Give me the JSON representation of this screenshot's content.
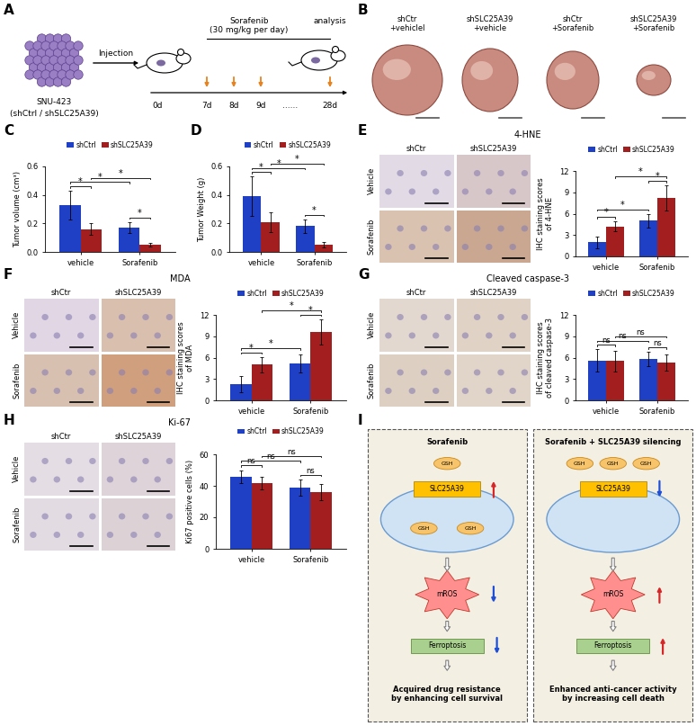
{
  "panel_labels": [
    "A",
    "B",
    "C",
    "D",
    "E",
    "F",
    "G",
    "H",
    "I"
  ],
  "schematic": {
    "cells": "SNU-423",
    "cells_note": "(shCtrl / shSLC25A39)",
    "injection": "Injection",
    "treatment": "Sorafenib",
    "dose": "(30 mg/kg per day)",
    "endpoint": "analysis",
    "days": [
      "0d",
      "7d",
      "8d",
      "9d",
      "......",
      "28d"
    ]
  },
  "tumor_photos": {
    "labels": [
      "shCtr\n+vehiclel",
      "shSLC25A39\n+vehicle",
      "shCtr\n+Sorafenib",
      "shSLC25A39\n+Sorafenib"
    ]
  },
  "chart_data": [
    {
      "type": "bar",
      "ylabel": "Tumor volume (cm³)",
      "categories": [
        "vehicle",
        "Sorafenib"
      ],
      "series": [
        {
          "name": "shCtrl",
          "color": "#1f3fc4",
          "values": [
            0.33,
            0.17
          ],
          "errors": [
            0.1,
            0.04
          ]
        },
        {
          "name": "shSLC25A39",
          "color": "#a31f1f",
          "values": [
            0.16,
            0.05
          ],
          "errors": [
            0.04,
            0.015
          ]
        }
      ],
      "ylim": [
        0,
        0.6
      ],
      "yticks": [
        {
          "value": 0,
          "label": "0.0"
        },
        {
          "value": 0.2,
          "label": "0.2"
        },
        {
          "value": 0.4,
          "label": "0.4"
        },
        {
          "value": 0.6,
          "label": "0.6"
        }
      ],
      "comparisons": [
        {
          "a": [
            "vehicle",
            "shCtrl"
          ],
          "b": [
            "vehicle",
            "shSLC25A39"
          ],
          "label": "*"
        },
        {
          "a": [
            "vehicle",
            "shCtrl"
          ],
          "b": [
            "Sorafenib",
            "shCtrl"
          ],
          "label": "*"
        },
        {
          "a": [
            "vehicle",
            "shSLC25A39"
          ],
          "b": [
            "Sorafenib",
            "shSLC25A39"
          ],
          "label": "*"
        },
        {
          "a": [
            "Sorafenib",
            "shCtrl"
          ],
          "b": [
            "Sorafenib",
            "shSLC25A39"
          ],
          "label": "*"
        }
      ]
    },
    {
      "type": "bar",
      "ylabel": "Tumor Weight (g)",
      "categories": [
        "vehicle",
        "Sorafenib"
      ],
      "series": [
        {
          "name": "shCtrl",
          "color": "#1f3fc4",
          "values": [
            0.39,
            0.18
          ],
          "errors": [
            0.14,
            0.05
          ]
        },
        {
          "name": "shSLC25A39",
          "color": "#a31f1f",
          "values": [
            0.21,
            0.05
          ],
          "errors": [
            0.07,
            0.02
          ]
        }
      ],
      "ylim": [
        0,
        0.6
      ],
      "yticks": [
        {
          "value": 0,
          "label": "0.0"
        },
        {
          "value": 0.2,
          "label": "0.2"
        },
        {
          "value": 0.4,
          "label": "0.4"
        },
        {
          "value": 0.6,
          "label": "0.6"
        }
      ],
      "comparisons": [
        {
          "a": [
            "vehicle",
            "shCtrl"
          ],
          "b": [
            "vehicle",
            "shSLC25A39"
          ],
          "label": "*"
        },
        {
          "a": [
            "vehicle",
            "shCtrl"
          ],
          "b": [
            "Sorafenib",
            "shCtrl"
          ],
          "label": "*"
        },
        {
          "a": [
            "vehicle",
            "shSLC25A39"
          ],
          "b": [
            "Sorafenib",
            "shSLC25A39"
          ],
          "label": "*"
        },
        {
          "a": [
            "Sorafenib",
            "shCtrl"
          ],
          "b": [
            "Sorafenib",
            "shSLC25A39"
          ],
          "label": "*"
        }
      ]
    },
    {
      "type": "bar",
      "title": "4-HNE",
      "ylabel": "IHC staining scores\nof 4-HNE",
      "categories": [
        "vehicle",
        "Sorafenib"
      ],
      "series": [
        {
          "name": "shCtrl",
          "color": "#1f3fc4",
          "values": [
            2.0,
            5.0
          ],
          "errors": [
            0.8,
            1.0
          ]
        },
        {
          "name": "shSLC25A39",
          "color": "#a31f1f",
          "values": [
            4.2,
            8.2
          ],
          "errors": [
            0.7,
            1.8
          ]
        }
      ],
      "ylim": [
        0,
        12
      ],
      "yticks": [
        0,
        3,
        6,
        9,
        12
      ],
      "comparisons": [
        {
          "a": [
            "vehicle",
            "shCtrl"
          ],
          "b": [
            "vehicle",
            "shSLC25A39"
          ],
          "label": "*"
        },
        {
          "a": [
            "vehicle",
            "shCtrl"
          ],
          "b": [
            "Sorafenib",
            "shCtrl"
          ],
          "label": "*"
        },
        {
          "a": [
            "vehicle",
            "shSLC25A39"
          ],
          "b": [
            "Sorafenib",
            "shSLC25A39"
          ],
          "label": "*"
        },
        {
          "a": [
            "Sorafenib",
            "shCtrl"
          ],
          "b": [
            "Sorafenib",
            "shSLC25A39"
          ],
          "label": "*"
        }
      ]
    },
    {
      "type": "bar",
      "title": "MDA",
      "ylabel": "IHC staining scores\nof MDA",
      "categories": [
        "vehicle",
        "Sorafenib"
      ],
      "series": [
        {
          "name": "shCtrl",
          "color": "#1f3fc4",
          "values": [
            2.3,
            5.2
          ],
          "errors": [
            1.1,
            1.3
          ]
        },
        {
          "name": "shSLC25A39",
          "color": "#a31f1f",
          "values": [
            5.0,
            9.6
          ],
          "errors": [
            1.1,
            1.8
          ]
        }
      ],
      "ylim": [
        0,
        12
      ],
      "yticks": [
        0,
        3,
        6,
        9,
        12
      ],
      "comparisons": [
        {
          "a": [
            "vehicle",
            "shCtrl"
          ],
          "b": [
            "vehicle",
            "shSLC25A39"
          ],
          "label": "*"
        },
        {
          "a": [
            "vehicle",
            "shCtrl"
          ],
          "b": [
            "Sorafenib",
            "shCtrl"
          ],
          "label": "*"
        },
        {
          "a": [
            "vehicle",
            "shSLC25A39"
          ],
          "b": [
            "Sorafenib",
            "shSLC25A39"
          ],
          "label": "*"
        },
        {
          "a": [
            "Sorafenib",
            "shCtrl"
          ],
          "b": [
            "Sorafenib",
            "shSLC25A39"
          ],
          "label": "*"
        }
      ]
    },
    {
      "type": "bar",
      "title": "Cleaved caspase-3",
      "ylabel": "IHC staining scores\nof cleaved caspase-3",
      "categories": [
        "vehicle",
        "Sorafenib"
      ],
      "series": [
        {
          "name": "shCtrl",
          "color": "#1f3fc4",
          "values": [
            5.6,
            5.8
          ],
          "errors": [
            1.6,
            1.0
          ]
        },
        {
          "name": "shSLC25A39",
          "color": "#a31f1f",
          "values": [
            5.5,
            5.3
          ],
          "errors": [
            1.5,
            1.1
          ]
        }
      ],
      "ylim": [
        0,
        12
      ],
      "yticks": [
        0,
        3,
        6,
        9,
        12
      ],
      "comparisons": [
        {
          "a": [
            "vehicle",
            "shCtrl"
          ],
          "b": [
            "vehicle",
            "shSLC25A39"
          ],
          "label": "ns"
        },
        {
          "a": [
            "vehicle",
            "shCtrl"
          ],
          "b": [
            "Sorafenib",
            "shCtrl"
          ],
          "label": "ns"
        },
        {
          "a": [
            "vehicle",
            "shSLC25A39"
          ],
          "b": [
            "Sorafenib",
            "shSLC25A39"
          ],
          "label": "ns"
        },
        {
          "a": [
            "Sorafenib",
            "shCtrl"
          ],
          "b": [
            "Sorafenib",
            "shSLC25A39"
          ],
          "label": "ns"
        }
      ]
    },
    {
      "type": "bar",
      "title": "Ki-67",
      "ylabel": "Ki67 positive cells (%)",
      "categories": [
        "vehicle",
        "Sorafenib"
      ],
      "series": [
        {
          "name": "shCtrl",
          "color": "#1f3fc4",
          "values": [
            46,
            39
          ],
          "errors": [
            4,
            5
          ]
        },
        {
          "name": "shSLC25A39",
          "color": "#a31f1f",
          "values": [
            42,
            36
          ],
          "errors": [
            4,
            5
          ]
        }
      ],
      "ylim": [
        0,
        60
      ],
      "yticks": [
        0,
        20,
        40,
        60
      ],
      "comparisons": [
        {
          "a": [
            "vehicle",
            "shCtrl"
          ],
          "b": [
            "vehicle",
            "shSLC25A39"
          ],
          "label": "ns"
        },
        {
          "a": [
            "vehicle",
            "shCtrl"
          ],
          "b": [
            "Sorafenib",
            "shCtrl"
          ],
          "label": "ns"
        },
        {
          "a": [
            "vehicle",
            "shSLC25A39"
          ],
          "b": [
            "Sorafenib",
            "shSLC25A39"
          ],
          "label": "ns"
        },
        {
          "a": [
            "Sorafenib",
            "shCtrl"
          ],
          "b": [
            "Sorafenib",
            "shSLC25A39"
          ],
          "label": "ns"
        }
      ]
    }
  ],
  "ihc_images": [
    {
      "columns": [
        "shCtr",
        "shSLC25A39"
      ],
      "rows": [
        "Vehicle",
        "Sorafenib"
      ]
    },
    {
      "columns": [
        "shCtr",
        "shSLC25A39"
      ],
      "rows": [
        "Vehicle",
        "Sorafenib"
      ]
    },
    {
      "columns": [
        "shCtr",
        "shSLC25A39"
      ],
      "rows": [
        "Vehicle",
        "Sorafenib"
      ]
    },
    {
      "columns": [
        "shCtr",
        "shSLC25A39"
      ],
      "rows": [
        "Vehicle",
        "Sorafenib"
      ]
    }
  ],
  "model": {
    "left": {
      "title": "Sorafenib",
      "outside": [
        "GSH"
      ],
      "inside": [
        "GSH",
        "GSH"
      ],
      "transporter": "SLC25A39",
      "ros": "mROS",
      "process": "Ferroptosis",
      "result": "Acquired drug resistance\nby enhancing cell survival"
    },
    "right": {
      "title": "Sorafenib + SLC25A39 silencing",
      "outside": [
        "GSH",
        "GSH",
        "GSH"
      ],
      "inside": [],
      "transporter": "SLC25A39",
      "ros": "mROS",
      "process": "Ferroptosis",
      "result": "Enhanced anti-cancer activity\nby increasing cell death"
    }
  }
}
